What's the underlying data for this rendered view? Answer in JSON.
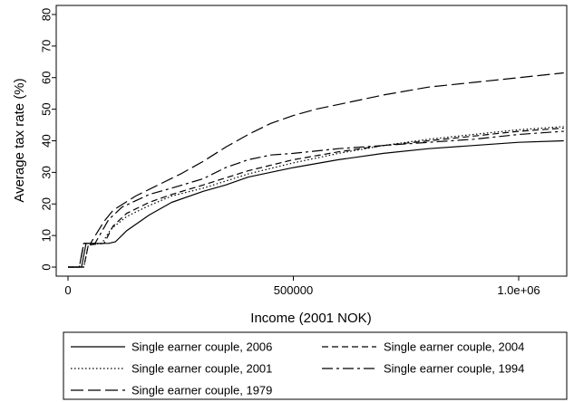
{
  "chart_data": {
    "type": "line",
    "title": "",
    "xlabel": "Income (2001 NOK)",
    "ylabel": "Average tax rate (%)",
    "xlim": [
      0,
      1100000
    ],
    "ylim": [
      0,
      80
    ],
    "x_ticks": [
      0,
      500000,
      1000000
    ],
    "x_tick_labels": [
      "0",
      "500000",
      "1.0e+06"
    ],
    "y_ticks": [
      0,
      10,
      20,
      30,
      40,
      50,
      60,
      70,
      80
    ],
    "y_tick_labels": [
      "0",
      "10",
      "20",
      "30",
      "40",
      "50",
      "60",
      "70",
      "80"
    ],
    "grid": false,
    "legend_position": "bottom",
    "series": [
      {
        "name": "Single earner couple, 2006",
        "dash": "",
        "points": [
          [
            0,
            0
          ],
          [
            30000,
            0
          ],
          [
            40000,
            7.5
          ],
          [
            90000,
            7.5
          ],
          [
            105000,
            8
          ],
          [
            130000,
            11.5
          ],
          [
            180000,
            16.5
          ],
          [
            230000,
            20.5
          ],
          [
            300000,
            24
          ],
          [
            350000,
            26
          ],
          [
            400000,
            28.5
          ],
          [
            500000,
            31.5
          ],
          [
            600000,
            34
          ],
          [
            700000,
            36
          ],
          [
            800000,
            37.5
          ],
          [
            900000,
            38.5
          ],
          [
            1000000,
            39.5
          ],
          [
            1100000,
            40
          ]
        ]
      },
      {
        "name": "Single earner couple, 2004",
        "dash": "7,4",
        "points": [
          [
            0,
            0
          ],
          [
            35000,
            0
          ],
          [
            45000,
            7
          ],
          [
            80000,
            7.5
          ],
          [
            100000,
            13
          ],
          [
            130000,
            17
          ],
          [
            180000,
            20.5
          ],
          [
            230000,
            23
          ],
          [
            300000,
            26
          ],
          [
            400000,
            30.5
          ],
          [
            500000,
            34
          ],
          [
            600000,
            36.5
          ],
          [
            700000,
            38.5
          ],
          [
            800000,
            40
          ],
          [
            900000,
            41.5
          ],
          [
            1000000,
            43
          ],
          [
            1100000,
            44
          ]
        ]
      },
      {
        "name": "Single earner couple, 2001",
        "dash": "1.5,2.5",
        "points": [
          [
            0,
            0
          ],
          [
            35000,
            0
          ],
          [
            45000,
            7
          ],
          [
            75000,
            7.5
          ],
          [
            95000,
            12
          ],
          [
            130000,
            16
          ],
          [
            180000,
            19.5
          ],
          [
            230000,
            22.5
          ],
          [
            300000,
            25
          ],
          [
            400000,
            29.5
          ],
          [
            500000,
            33
          ],
          [
            600000,
            36
          ],
          [
            700000,
            38.5
          ],
          [
            800000,
            40.5
          ],
          [
            900000,
            42
          ],
          [
            1000000,
            43.5
          ],
          [
            1100000,
            44.5
          ]
        ]
      },
      {
        "name": "Single earner couple, 1994",
        "dash": "12,4,3,4",
        "points": [
          [
            0,
            0
          ],
          [
            25000,
            0
          ],
          [
            35000,
            7.5
          ],
          [
            60000,
            7.5
          ],
          [
            90000,
            15
          ],
          [
            120000,
            19
          ],
          [
            180000,
            23
          ],
          [
            230000,
            25
          ],
          [
            300000,
            28
          ],
          [
            350000,
            31.5
          ],
          [
            400000,
            34
          ],
          [
            450000,
            35.5
          ],
          [
            500000,
            36
          ],
          [
            600000,
            37.5
          ],
          [
            700000,
            38.5
          ],
          [
            800000,
            39.5
          ],
          [
            900000,
            40.5
          ],
          [
            1000000,
            42
          ],
          [
            1100000,
            43
          ]
        ]
      },
      {
        "name": "Single earner couple, 1979",
        "dash": "14,5",
        "points": [
          [
            0,
            0
          ],
          [
            25000,
            0
          ],
          [
            35000,
            7.5
          ],
          [
            50000,
            7.5
          ],
          [
            80000,
            14.5
          ],
          [
            100000,
            18
          ],
          [
            150000,
            22.5
          ],
          [
            200000,
            26
          ],
          [
            250000,
            29.5
          ],
          [
            300000,
            33.5
          ],
          [
            350000,
            38
          ],
          [
            400000,
            42
          ],
          [
            450000,
            45.5
          ],
          [
            500000,
            48
          ],
          [
            550000,
            50
          ],
          [
            600000,
            51.5
          ],
          [
            700000,
            54.5
          ],
          [
            800000,
            57
          ],
          [
            900000,
            58.5
          ],
          [
            1000000,
            60
          ],
          [
            1100000,
            61.5
          ]
        ]
      }
    ]
  }
}
